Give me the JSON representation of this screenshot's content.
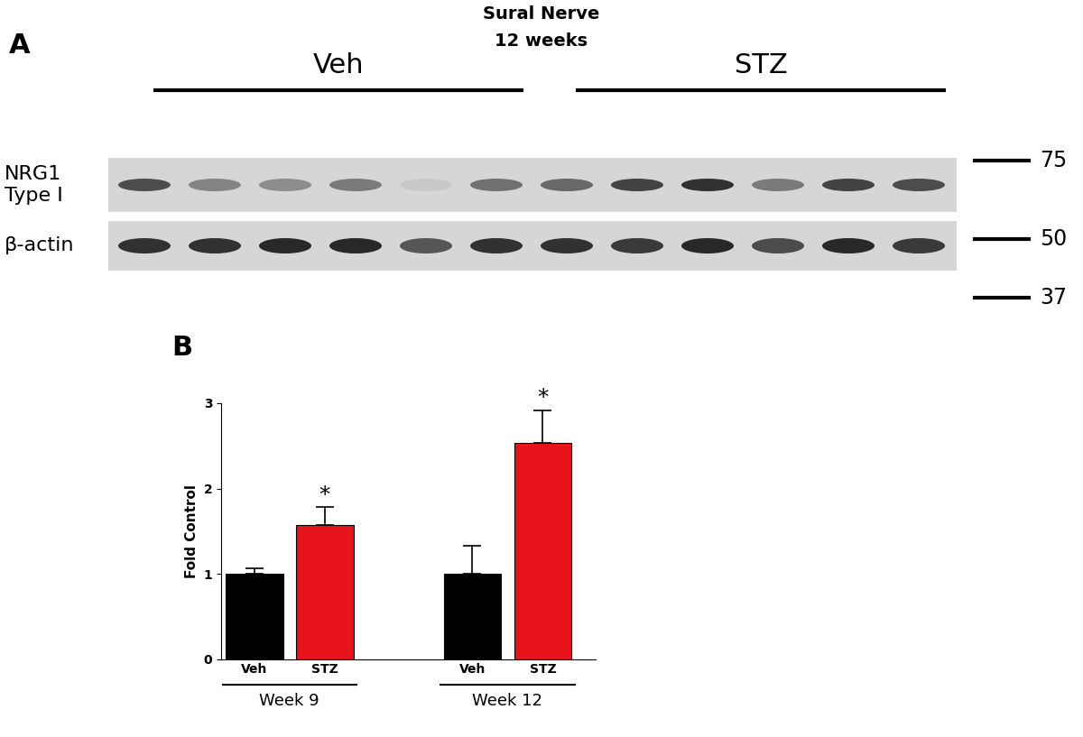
{
  "panel_labels": [
    "A",
    "B"
  ],
  "blot": {
    "title": "Sural Nerve",
    "subtitle": "12 weeks",
    "groups": [
      "Veh",
      "STZ"
    ],
    "rows": [
      {
        "label": "NRG1\nType I",
        "intensity": {
          "Veh": [
            0.75,
            0.45,
            0.4,
            0.5,
            0.08,
            0.55
          ],
          "STZ": [
            0.6,
            0.8,
            0.9,
            0.5,
            0.8,
            0.75
          ]
        }
      },
      {
        "label": "β-actin",
        "intensity": {
          "Veh": [
            0.9,
            0.9,
            0.95,
            0.95,
            0.7,
            0.9
          ],
          "STZ": [
            0.9,
            0.85,
            0.95,
            0.75,
            0.95,
            0.85
          ]
        }
      }
    ],
    "ladder_kda": [
      75,
      50,
      37
    ]
  },
  "chart_data": {
    "type": "bar",
    "categories": [
      "Veh",
      "STZ",
      "Veh",
      "STZ"
    ],
    "groups": [
      "Week 9",
      "Week 9",
      "Week 12",
      "Week 12"
    ],
    "values": [
      1.0,
      1.57,
      1.0,
      2.54
    ],
    "errors": [
      0.07,
      0.21,
      0.33,
      0.38
    ],
    "colors": [
      "#000000",
      "#e8141c",
      "#000000",
      "#e8141c"
    ],
    "y_label": "Fold Control",
    "ylim": [
      0,
      3
    ],
    "yticks": [
      0,
      1,
      2,
      3
    ],
    "significance": [
      null,
      "*",
      null,
      "*"
    ]
  }
}
